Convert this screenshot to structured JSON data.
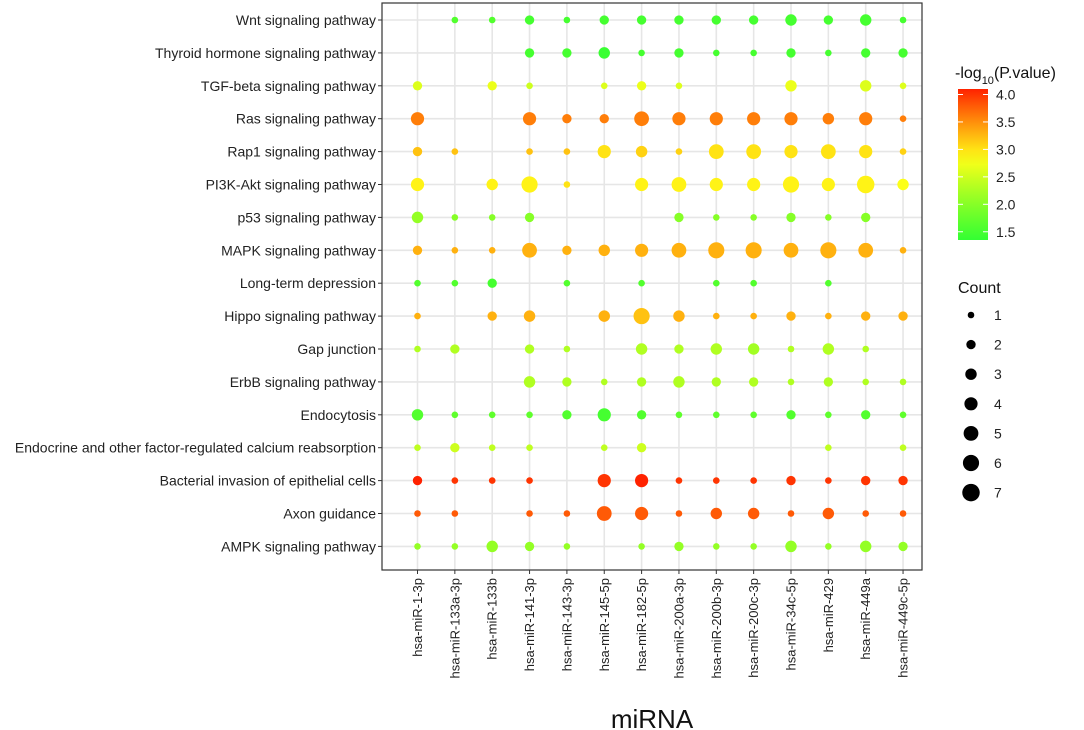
{
  "chart_data": {
    "type": "scatter",
    "subtype": "dot-plot",
    "xlabel": "miRNA",
    "ylabel": "",
    "x_categories": [
      "hsa-miR-1-3p",
      "hsa-miR-133a-3p",
      "hsa-miR-133b",
      "hsa-miR-141-3p",
      "hsa-miR-143-3p",
      "hsa-miR-145-5p",
      "hsa-miR-182-5p",
      "hsa-miR-200a-3p",
      "hsa-miR-200b-3p",
      "hsa-miR-200c-3p",
      "hsa-miR-34c-5p",
      "hsa-miR-429",
      "hsa-miR-449a",
      "hsa-miR-449c-5p"
    ],
    "y_categories": [
      "Wnt signaling pathway",
      "Thyroid hormone signaling pathway",
      "TGF-beta signaling pathway",
      "Ras signaling pathway",
      "Rap1 signaling pathway",
      "PI3K-Akt signaling pathway",
      "p53 signaling pathway",
      "MAPK signaling pathway",
      "Long-term depression",
      "Hippo signaling pathway",
      "Gap junction",
      "ErbB signaling pathway",
      "Endocytosis",
      "Endocrine and other factor-regulated calcium reabsorption",
      "Bacterial invasion of epithelial cells",
      "Axon guidance",
      "AMPK signaling pathway"
    ],
    "color_legend": {
      "title_prefix": "-log",
      "title_sub": "10",
      "title_suffix": "(P.value)",
      "range": [
        1.35,
        4.1
      ],
      "ticks": [
        "4.0",
        "3.5",
        "3.0",
        "2.5",
        "2.0",
        "1.5"
      ],
      "tick_values": [
        4.0,
        3.5,
        3.0,
        2.5,
        2.0,
        1.5
      ],
      "colors": [
        "#33ff33",
        "#ff2200"
      ]
    },
    "size_legend": {
      "title": "Count",
      "ticks": [
        "1",
        "2",
        "3",
        "4",
        "5",
        "6",
        "7"
      ],
      "tick_values": [
        1,
        2,
        3,
        4,
        5,
        6,
        7
      ]
    },
    "points": [
      {
        "row": 0,
        "col": 1,
        "count": 1,
        "p": 1.6
      },
      {
        "row": 0,
        "col": 2,
        "count": 1,
        "p": 1.6
      },
      {
        "row": 0,
        "col": 3,
        "count": 2,
        "p": 1.5
      },
      {
        "row": 0,
        "col": 4,
        "count": 1,
        "p": 1.5
      },
      {
        "row": 0,
        "col": 5,
        "count": 2,
        "p": 1.5
      },
      {
        "row": 0,
        "col": 6,
        "count": 2,
        "p": 1.5
      },
      {
        "row": 0,
        "col": 7,
        "count": 2,
        "p": 1.5
      },
      {
        "row": 0,
        "col": 8,
        "count": 2,
        "p": 1.5
      },
      {
        "row": 0,
        "col": 9,
        "count": 2,
        "p": 1.5
      },
      {
        "row": 0,
        "col": 10,
        "count": 3,
        "p": 1.5
      },
      {
        "row": 0,
        "col": 11,
        "count": 2,
        "p": 1.5
      },
      {
        "row": 0,
        "col": 12,
        "count": 3,
        "p": 1.5
      },
      {
        "row": 0,
        "col": 13,
        "count": 1,
        "p": 1.5
      },
      {
        "row": 1,
        "col": 3,
        "count": 2,
        "p": 1.5
      },
      {
        "row": 1,
        "col": 4,
        "count": 2,
        "p": 1.5
      },
      {
        "row": 1,
        "col": 5,
        "count": 3,
        "p": 1.4
      },
      {
        "row": 1,
        "col": 6,
        "count": 1,
        "p": 1.5
      },
      {
        "row": 1,
        "col": 7,
        "count": 2,
        "p": 1.5
      },
      {
        "row": 1,
        "col": 8,
        "count": 1,
        "p": 1.5
      },
      {
        "row": 1,
        "col": 9,
        "count": 1,
        "p": 1.5
      },
      {
        "row": 1,
        "col": 10,
        "count": 2,
        "p": 1.5
      },
      {
        "row": 1,
        "col": 11,
        "count": 1,
        "p": 1.5
      },
      {
        "row": 1,
        "col": 12,
        "count": 2,
        "p": 1.5
      },
      {
        "row": 1,
        "col": 13,
        "count": 2,
        "p": 1.5
      },
      {
        "row": 2,
        "col": 0,
        "count": 2,
        "p": 2.6
      },
      {
        "row": 2,
        "col": 2,
        "count": 2,
        "p": 2.7
      },
      {
        "row": 2,
        "col": 3,
        "count": 1,
        "p": 2.5
      },
      {
        "row": 2,
        "col": 5,
        "count": 1,
        "p": 2.6
      },
      {
        "row": 2,
        "col": 6,
        "count": 2,
        "p": 2.7
      },
      {
        "row": 2,
        "col": 7,
        "count": 1,
        "p": 2.6
      },
      {
        "row": 2,
        "col": 10,
        "count": 3,
        "p": 2.7
      },
      {
        "row": 2,
        "col": 12,
        "count": 3,
        "p": 2.6
      },
      {
        "row": 2,
        "col": 13,
        "count": 1,
        "p": 2.6
      },
      {
        "row": 3,
        "col": 0,
        "count": 4,
        "p": 3.6
      },
      {
        "row": 3,
        "col": 3,
        "count": 4,
        "p": 3.6
      },
      {
        "row": 3,
        "col": 4,
        "count": 2,
        "p": 3.6
      },
      {
        "row": 3,
        "col": 5,
        "count": 2,
        "p": 3.6
      },
      {
        "row": 3,
        "col": 6,
        "count": 5,
        "p": 3.6
      },
      {
        "row": 3,
        "col": 7,
        "count": 4,
        "p": 3.6
      },
      {
        "row": 3,
        "col": 8,
        "count": 4,
        "p": 3.6
      },
      {
        "row": 3,
        "col": 9,
        "count": 4,
        "p": 3.6
      },
      {
        "row": 3,
        "col": 10,
        "count": 4,
        "p": 3.6
      },
      {
        "row": 3,
        "col": 11,
        "count": 3,
        "p": 3.6
      },
      {
        "row": 3,
        "col": 12,
        "count": 4,
        "p": 3.6
      },
      {
        "row": 3,
        "col": 13,
        "count": 1,
        "p": 3.6
      },
      {
        "row": 4,
        "col": 0,
        "count": 2,
        "p": 3.2
      },
      {
        "row": 4,
        "col": 1,
        "count": 1,
        "p": 3.2
      },
      {
        "row": 4,
        "col": 3,
        "count": 1,
        "p": 3.2
      },
      {
        "row": 4,
        "col": 4,
        "count": 1,
        "p": 3.2
      },
      {
        "row": 4,
        "col": 5,
        "count": 4,
        "p": 3.0
      },
      {
        "row": 4,
        "col": 6,
        "count": 3,
        "p": 3.1
      },
      {
        "row": 4,
        "col": 7,
        "count": 1,
        "p": 3.1
      },
      {
        "row": 4,
        "col": 8,
        "count": 5,
        "p": 3.0
      },
      {
        "row": 4,
        "col": 9,
        "count": 5,
        "p": 3.0
      },
      {
        "row": 4,
        "col": 10,
        "count": 4,
        "p": 3.0
      },
      {
        "row": 4,
        "col": 11,
        "count": 5,
        "p": 3.0
      },
      {
        "row": 4,
        "col": 12,
        "count": 4,
        "p": 3.0
      },
      {
        "row": 4,
        "col": 13,
        "count": 1,
        "p": 3.1
      },
      {
        "row": 5,
        "col": 0,
        "count": 4,
        "p": 2.9
      },
      {
        "row": 5,
        "col": 2,
        "count": 3,
        "p": 2.9
      },
      {
        "row": 5,
        "col": 3,
        "count": 6,
        "p": 2.9
      },
      {
        "row": 5,
        "col": 4,
        "count": 1,
        "p": 3.0
      },
      {
        "row": 5,
        "col": 6,
        "count": 4,
        "p": 2.9
      },
      {
        "row": 5,
        "col": 7,
        "count": 5,
        "p": 2.9
      },
      {
        "row": 5,
        "col": 8,
        "count": 4,
        "p": 2.9
      },
      {
        "row": 5,
        "col": 9,
        "count": 4,
        "p": 2.9
      },
      {
        "row": 5,
        "col": 10,
        "count": 6,
        "p": 2.9
      },
      {
        "row": 5,
        "col": 11,
        "count": 4,
        "p": 2.9
      },
      {
        "row": 5,
        "col": 12,
        "count": 7,
        "p": 2.9
      },
      {
        "row": 5,
        "col": 13,
        "count": 3,
        "p": 2.8
      },
      {
        "row": 6,
        "col": 0,
        "count": 3,
        "p": 2.1
      },
      {
        "row": 6,
        "col": 1,
        "count": 1,
        "p": 2.0
      },
      {
        "row": 6,
        "col": 2,
        "count": 1,
        "p": 2.0
      },
      {
        "row": 6,
        "col": 3,
        "count": 2,
        "p": 2.0
      },
      {
        "row": 6,
        "col": 7,
        "count": 2,
        "p": 2.0
      },
      {
        "row": 6,
        "col": 8,
        "count": 1,
        "p": 2.0
      },
      {
        "row": 6,
        "col": 9,
        "count": 1,
        "p": 2.0
      },
      {
        "row": 6,
        "col": 10,
        "count": 2,
        "p": 2.0
      },
      {
        "row": 6,
        "col": 11,
        "count": 1,
        "p": 2.0
      },
      {
        "row": 6,
        "col": 12,
        "count": 2,
        "p": 2.0
      },
      {
        "row": 7,
        "col": 0,
        "count": 2,
        "p": 3.3
      },
      {
        "row": 7,
        "col": 1,
        "count": 1,
        "p": 3.3
      },
      {
        "row": 7,
        "col": 2,
        "count": 1,
        "p": 3.3
      },
      {
        "row": 7,
        "col": 3,
        "count": 5,
        "p": 3.3
      },
      {
        "row": 7,
        "col": 4,
        "count": 2,
        "p": 3.3
      },
      {
        "row": 7,
        "col": 5,
        "count": 3,
        "p": 3.3
      },
      {
        "row": 7,
        "col": 6,
        "count": 4,
        "p": 3.3
      },
      {
        "row": 7,
        "col": 7,
        "count": 5,
        "p": 3.3
      },
      {
        "row": 7,
        "col": 8,
        "count": 6,
        "p": 3.3
      },
      {
        "row": 7,
        "col": 9,
        "count": 6,
        "p": 3.3
      },
      {
        "row": 7,
        "col": 10,
        "count": 5,
        "p": 3.3
      },
      {
        "row": 7,
        "col": 11,
        "count": 6,
        "p": 3.3
      },
      {
        "row": 7,
        "col": 12,
        "count": 5,
        "p": 3.3
      },
      {
        "row": 7,
        "col": 13,
        "count": 1,
        "p": 3.3
      },
      {
        "row": 8,
        "col": 0,
        "count": 1,
        "p": 1.6
      },
      {
        "row": 8,
        "col": 1,
        "count": 1,
        "p": 1.6
      },
      {
        "row": 8,
        "col": 2,
        "count": 2,
        "p": 1.5
      },
      {
        "row": 8,
        "col": 4,
        "count": 1,
        "p": 1.6
      },
      {
        "row": 8,
        "col": 6,
        "count": 1,
        "p": 1.6
      },
      {
        "row": 8,
        "col": 8,
        "count": 1,
        "p": 1.6
      },
      {
        "row": 8,
        "col": 9,
        "count": 1,
        "p": 1.6
      },
      {
        "row": 8,
        "col": 11,
        "count": 1,
        "p": 1.6
      },
      {
        "row": 9,
        "col": 0,
        "count": 1,
        "p": 3.3
      },
      {
        "row": 9,
        "col": 2,
        "count": 2,
        "p": 3.3
      },
      {
        "row": 9,
        "col": 3,
        "count": 3,
        "p": 3.3
      },
      {
        "row": 9,
        "col": 5,
        "count": 3,
        "p": 3.3
      },
      {
        "row": 9,
        "col": 6,
        "count": 6,
        "p": 3.2
      },
      {
        "row": 9,
        "col": 7,
        "count": 3,
        "p": 3.3
      },
      {
        "row": 9,
        "col": 8,
        "count": 1,
        "p": 3.3
      },
      {
        "row": 9,
        "col": 9,
        "count": 1,
        "p": 3.3
      },
      {
        "row": 9,
        "col": 10,
        "count": 2,
        "p": 3.3
      },
      {
        "row": 9,
        "col": 11,
        "count": 1,
        "p": 3.3
      },
      {
        "row": 9,
        "col": 12,
        "count": 2,
        "p": 3.3
      },
      {
        "row": 9,
        "col": 13,
        "count": 2,
        "p": 3.3
      },
      {
        "row": 10,
        "col": 0,
        "count": 1,
        "p": 2.3
      },
      {
        "row": 10,
        "col": 1,
        "count": 2,
        "p": 2.3
      },
      {
        "row": 10,
        "col": 3,
        "count": 2,
        "p": 2.3
      },
      {
        "row": 10,
        "col": 4,
        "count": 1,
        "p": 2.3
      },
      {
        "row": 10,
        "col": 6,
        "count": 3,
        "p": 2.3
      },
      {
        "row": 10,
        "col": 7,
        "count": 2,
        "p": 2.3
      },
      {
        "row": 10,
        "col": 8,
        "count": 3,
        "p": 2.3
      },
      {
        "row": 10,
        "col": 9,
        "count": 3,
        "p": 2.2
      },
      {
        "row": 10,
        "col": 10,
        "count": 1,
        "p": 2.3
      },
      {
        "row": 10,
        "col": 11,
        "count": 3,
        "p": 2.3
      },
      {
        "row": 10,
        "col": 12,
        "count": 1,
        "p": 2.3
      },
      {
        "row": 11,
        "col": 3,
        "count": 3,
        "p": 2.3
      },
      {
        "row": 11,
        "col": 4,
        "count": 2,
        "p": 2.3
      },
      {
        "row": 11,
        "col": 5,
        "count": 1,
        "p": 2.3
      },
      {
        "row": 11,
        "col": 6,
        "count": 2,
        "p": 2.3
      },
      {
        "row": 11,
        "col": 7,
        "count": 3,
        "p": 2.3
      },
      {
        "row": 11,
        "col": 8,
        "count": 2,
        "p": 2.3
      },
      {
        "row": 11,
        "col": 9,
        "count": 2,
        "p": 2.3
      },
      {
        "row": 11,
        "col": 10,
        "count": 1,
        "p": 2.3
      },
      {
        "row": 11,
        "col": 11,
        "count": 2,
        "p": 2.3
      },
      {
        "row": 11,
        "col": 12,
        "count": 1,
        "p": 2.3
      },
      {
        "row": 11,
        "col": 13,
        "count": 1,
        "p": 2.3
      },
      {
        "row": 12,
        "col": 0,
        "count": 3,
        "p": 1.6
      },
      {
        "row": 12,
        "col": 1,
        "count": 1,
        "p": 1.7
      },
      {
        "row": 12,
        "col": 2,
        "count": 1,
        "p": 1.7
      },
      {
        "row": 12,
        "col": 3,
        "count": 1,
        "p": 1.7
      },
      {
        "row": 12,
        "col": 4,
        "count": 2,
        "p": 1.6
      },
      {
        "row": 12,
        "col": 5,
        "count": 4,
        "p": 1.5
      },
      {
        "row": 12,
        "col": 6,
        "count": 2,
        "p": 1.6
      },
      {
        "row": 12,
        "col": 7,
        "count": 1,
        "p": 1.7
      },
      {
        "row": 12,
        "col": 8,
        "count": 1,
        "p": 1.7
      },
      {
        "row": 12,
        "col": 9,
        "count": 1,
        "p": 1.7
      },
      {
        "row": 12,
        "col": 10,
        "count": 2,
        "p": 1.6
      },
      {
        "row": 12,
        "col": 11,
        "count": 1,
        "p": 1.7
      },
      {
        "row": 12,
        "col": 12,
        "count": 2,
        "p": 1.6
      },
      {
        "row": 12,
        "col": 13,
        "count": 1,
        "p": 1.7
      },
      {
        "row": 13,
        "col": 0,
        "count": 1,
        "p": 2.4
      },
      {
        "row": 13,
        "col": 1,
        "count": 2,
        "p": 2.5
      },
      {
        "row": 13,
        "col": 2,
        "count": 1,
        "p": 2.4
      },
      {
        "row": 13,
        "col": 3,
        "count": 1,
        "p": 2.4
      },
      {
        "row": 13,
        "col": 5,
        "count": 1,
        "p": 2.4
      },
      {
        "row": 13,
        "col": 6,
        "count": 2,
        "p": 2.5
      },
      {
        "row": 13,
        "col": 11,
        "count": 1,
        "p": 2.4
      },
      {
        "row": 13,
        "col": 13,
        "count": 1,
        "p": 2.4
      },
      {
        "row": 14,
        "col": 0,
        "count": 2,
        "p": 4.1
      },
      {
        "row": 14,
        "col": 1,
        "count": 1,
        "p": 4.0
      },
      {
        "row": 14,
        "col": 2,
        "count": 1,
        "p": 4.0
      },
      {
        "row": 14,
        "col": 3,
        "count": 1,
        "p": 4.0
      },
      {
        "row": 14,
        "col": 5,
        "count": 4,
        "p": 4.0
      },
      {
        "row": 14,
        "col": 6,
        "count": 4,
        "p": 4.1
      },
      {
        "row": 14,
        "col": 7,
        "count": 1,
        "p": 4.0
      },
      {
        "row": 14,
        "col": 8,
        "count": 1,
        "p": 4.0
      },
      {
        "row": 14,
        "col": 9,
        "count": 1,
        "p": 4.0
      },
      {
        "row": 14,
        "col": 10,
        "count": 2,
        "p": 4.0
      },
      {
        "row": 14,
        "col": 11,
        "count": 1,
        "p": 4.0
      },
      {
        "row": 14,
        "col": 12,
        "count": 2,
        "p": 4.0
      },
      {
        "row": 14,
        "col": 13,
        "count": 2,
        "p": 4.0
      },
      {
        "row": 15,
        "col": 0,
        "count": 1,
        "p": 3.8
      },
      {
        "row": 15,
        "col": 1,
        "count": 1,
        "p": 3.8
      },
      {
        "row": 15,
        "col": 3,
        "count": 1,
        "p": 3.8
      },
      {
        "row": 15,
        "col": 4,
        "count": 1,
        "p": 3.8
      },
      {
        "row": 15,
        "col": 5,
        "count": 5,
        "p": 3.8
      },
      {
        "row": 15,
        "col": 6,
        "count": 4,
        "p": 3.8
      },
      {
        "row": 15,
        "col": 7,
        "count": 1,
        "p": 3.8
      },
      {
        "row": 15,
        "col": 8,
        "count": 3,
        "p": 3.8
      },
      {
        "row": 15,
        "col": 9,
        "count": 3,
        "p": 3.8
      },
      {
        "row": 15,
        "col": 10,
        "count": 1,
        "p": 3.8
      },
      {
        "row": 15,
        "col": 11,
        "count": 3,
        "p": 3.8
      },
      {
        "row": 15,
        "col": 12,
        "count": 1,
        "p": 3.8
      },
      {
        "row": 15,
        "col": 13,
        "count": 1,
        "p": 3.8
      },
      {
        "row": 16,
        "col": 0,
        "count": 1,
        "p": 2.1
      },
      {
        "row": 16,
        "col": 1,
        "count": 1,
        "p": 2.1
      },
      {
        "row": 16,
        "col": 2,
        "count": 3,
        "p": 2.1
      },
      {
        "row": 16,
        "col": 3,
        "count": 2,
        "p": 2.1
      },
      {
        "row": 16,
        "col": 4,
        "count": 1,
        "p": 2.1
      },
      {
        "row": 16,
        "col": 6,
        "count": 1,
        "p": 2.1
      },
      {
        "row": 16,
        "col": 7,
        "count": 2,
        "p": 2.1
      },
      {
        "row": 16,
        "col": 8,
        "count": 1,
        "p": 2.1
      },
      {
        "row": 16,
        "col": 9,
        "count": 1,
        "p": 2.1
      },
      {
        "row": 16,
        "col": 10,
        "count": 3,
        "p": 2.1
      },
      {
        "row": 16,
        "col": 11,
        "count": 1,
        "p": 2.1
      },
      {
        "row": 16,
        "col": 12,
        "count": 3,
        "p": 2.1
      },
      {
        "row": 16,
        "col": 13,
        "count": 2,
        "p": 2.1
      }
    ]
  }
}
